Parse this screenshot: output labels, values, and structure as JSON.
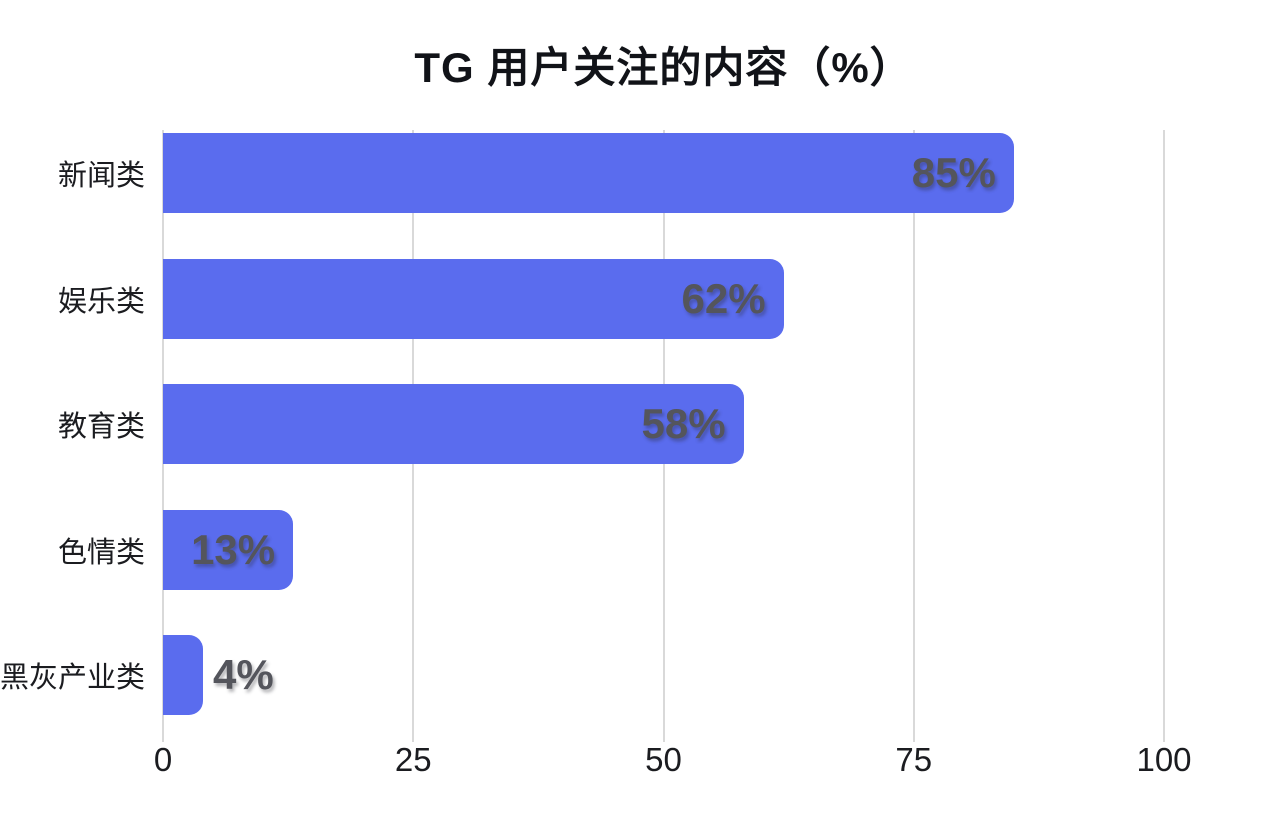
{
  "chart_data": {
    "type": "bar",
    "orientation": "horizontal",
    "title": "TG 用户关注的内容（%）",
    "categories": [
      "新闻类",
      "娱乐类",
      "教育类",
      "色情类",
      "黑灰产业类"
    ],
    "values": [
      85,
      62,
      58,
      13,
      4
    ],
    "value_labels": [
      "85%",
      "62%",
      "58%",
      "13%",
      "4%"
    ],
    "x_ticks": [
      "0",
      "25",
      "50",
      "75",
      "100"
    ],
    "x_tick_values": [
      0,
      25,
      50,
      75,
      100
    ],
    "xlim": [
      0,
      100
    ],
    "grid": "vertical-gridlines",
    "legend": false,
    "colors": {
      "bar": "#5a6cee",
      "gridline": "#d9d9d9",
      "value_text": "#54555c",
      "axis_text": "#1b1c20",
      "title_text": "#111318",
      "background": "#ffffff"
    }
  }
}
